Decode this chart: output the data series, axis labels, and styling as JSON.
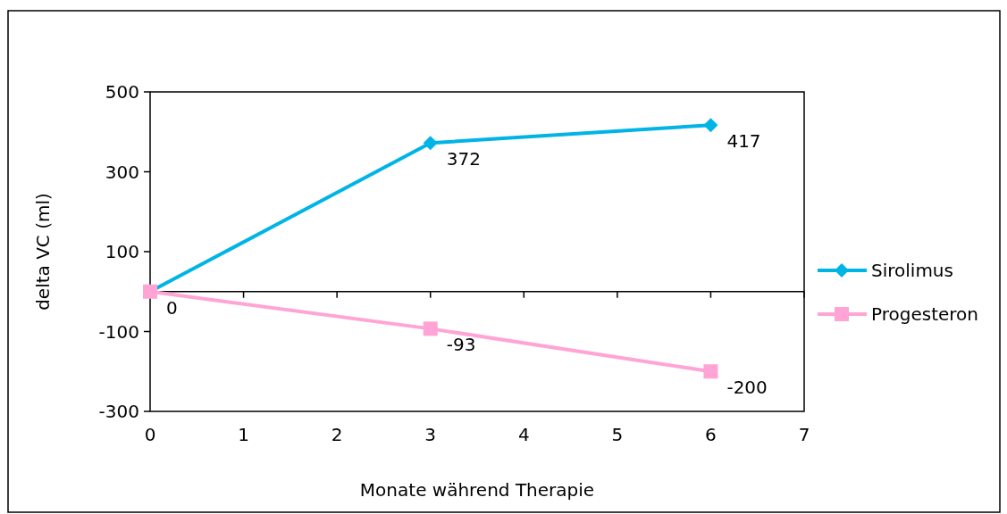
{
  "chart_data": {
    "type": "line",
    "xlabel": "Monate während Therapie",
    "ylabel": "delta VC (ml)",
    "x": [
      0,
      3,
      6
    ],
    "series": [
      {
        "name": "Sirolimus",
        "color": "#00b4e6",
        "marker": "diamond",
        "values": [
          0,
          372,
          417
        ],
        "value_labels": [
          null,
          "372",
          "417"
        ]
      },
      {
        "name": "Progesteron",
        "color": "#ffa4d4",
        "marker": "square",
        "values": [
          0,
          -93,
          -200
        ],
        "value_labels": [
          "0",
          "-93",
          "-200"
        ]
      }
    ],
    "xlim": [
      0,
      7
    ],
    "xticks": [
      0,
      1,
      2,
      3,
      4,
      5,
      6,
      7
    ],
    "ylim": [
      -300,
      500
    ],
    "yticks": [
      -300,
      -100,
      100,
      300,
      500
    ],
    "grid": false,
    "legend": "right",
    "line_style": "solid"
  }
}
